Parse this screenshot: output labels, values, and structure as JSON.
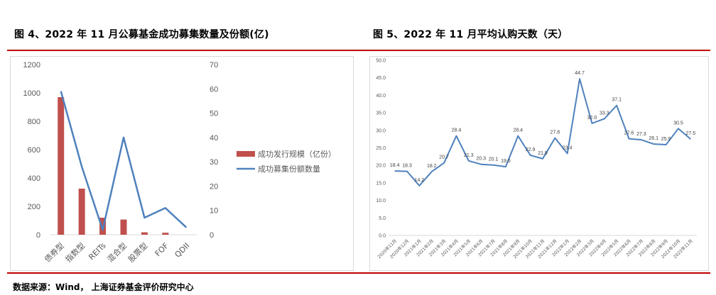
{
  "titles": {
    "left": "图 4、2022 年 11 月公募基金成功募集数量及份额(亿)",
    "right": "图 5、2022 年 11 月平均认购天数（天）"
  },
  "source": "数据来源：Wind，  上海证券基金评价研究中心",
  "colors": {
    "rule": "#c00000",
    "bar": "#c0504d",
    "line": "#4f81bd",
    "axis_text": "#595959",
    "grid": "#d9d9d9"
  },
  "chart_data": [
    {
      "type": "bar",
      "categories": [
        "债券型",
        "指数型",
        "REITs",
        "混合型",
        "股票型",
        "FOF",
        "QDII"
      ],
      "series": [
        {
          "name": "成功发行规模（亿份）",
          "kind": "bar",
          "axis": "left",
          "values": [
            970,
            325,
            120,
            107,
            17,
            14,
            0
          ]
        },
        {
          "name": "成功募集份额数量",
          "kind": "line",
          "axis": "right",
          "values": [
            59,
            28,
            2,
            40,
            7,
            11,
            3
          ]
        }
      ],
      "yleft": {
        "lim": [
          0,
          1200
        ],
        "ticks": [
          "0",
          "200",
          "400",
          "600",
          "800",
          "1000",
          "1200"
        ]
      },
      "yright": {
        "lim": [
          0,
          70
        ],
        "ticks": [
          "0",
          "10",
          "20",
          "30",
          "40",
          "50",
          "60",
          "70"
        ]
      },
      "legend_position": "right"
    },
    {
      "type": "line",
      "x": [
        "2020年11月",
        "2020年12月",
        "2021年1月",
        "2021年2月",
        "2021年3月",
        "2021年4月",
        "2021年5月",
        "2021年6月",
        "2021年7月",
        "2021年8月",
        "2021年9月",
        "2021年10月",
        "2021年11月",
        "2021年12月",
        "2022年1月",
        "2022年2月",
        "2022年3月",
        "2022年4月",
        "2022年5月",
        "2022年6月",
        "2022年7月",
        "2022年8月",
        "2022年9月",
        "2022年10月",
        "2022年11月"
      ],
      "series": [
        {
          "values": [
            18.4,
            18.3,
            14.2,
            18.2,
            20.7,
            28.4,
            21.3,
            20.3,
            20.1,
            19.6,
            28.4,
            22.9,
            21.9,
            27.8,
            23.4,
            44.7,
            32.0,
            33.3,
            37.1,
            27.6,
            27.3,
            26.1,
            25.9,
            30.5,
            27.5
          ],
          "labels": [
            "18.4",
            "18.3",
            "14.2",
            "18.2",
            "20.7",
            "28.4",
            "21.3",
            "20.3",
            "20.1",
            "19.6",
            "28.4",
            "22.9",
            "21.9",
            "27.8",
            "23.4",
            "44.7",
            "32.0",
            "33.3",
            "37.1",
            "27.6",
            "27.3",
            "26.1",
            "25.9",
            "30.5",
            "27.5"
          ]
        }
      ],
      "ylim": [
        0,
        50
      ],
      "yticks": [
        "0.0",
        "5.0",
        "10.0",
        "15.0",
        "20.0",
        "25.0",
        "30.0",
        "35.0",
        "40.0",
        "45.0",
        "50.0"
      ]
    }
  ]
}
